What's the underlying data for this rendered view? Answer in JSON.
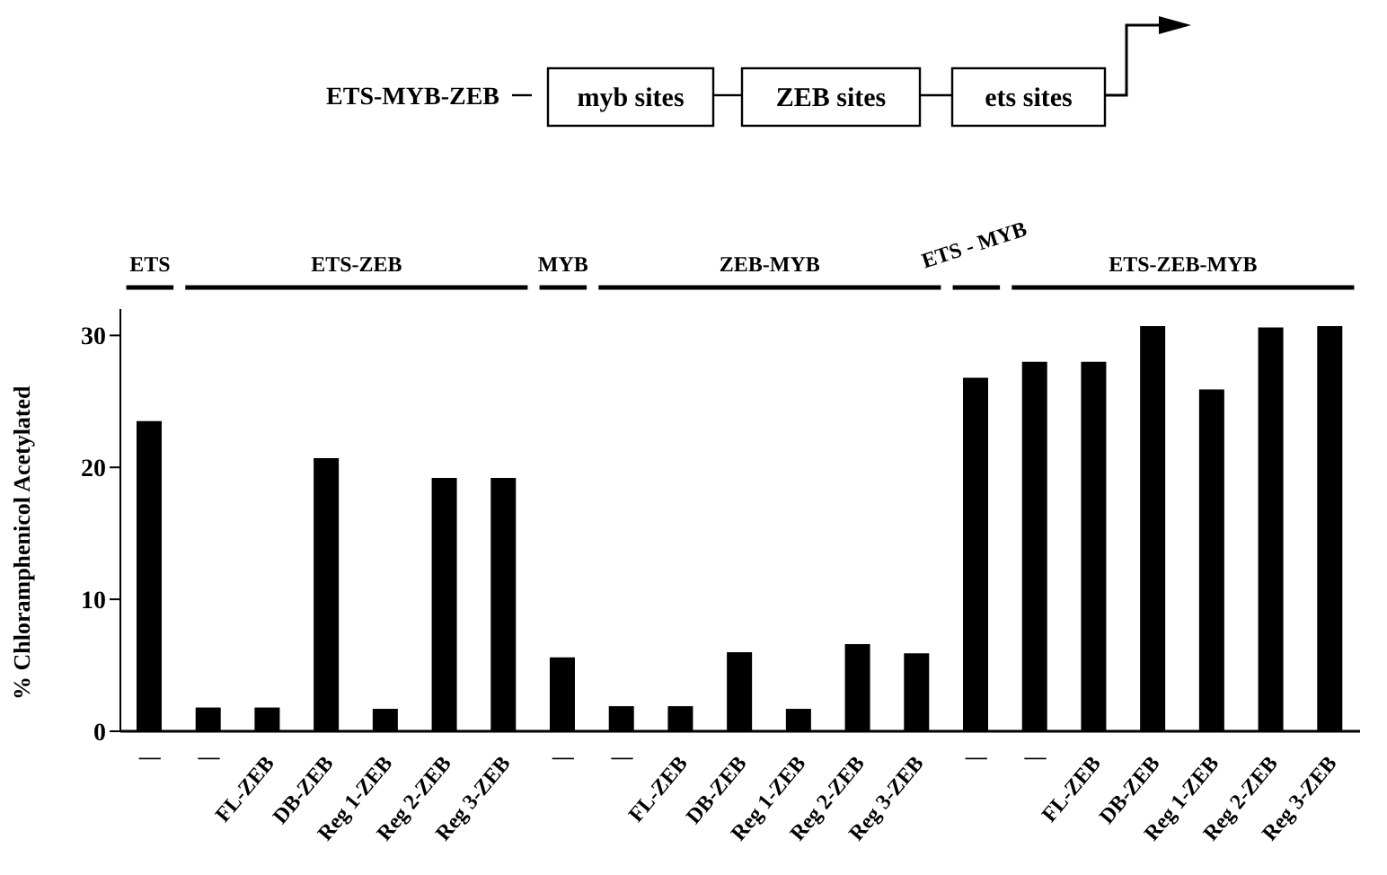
{
  "chart_data": {
    "type": "bar",
    "ylabel": "% Chloramphenicol Acetylated",
    "categories": [
      "—",
      "—",
      "FL-ZEB",
      "DB-ZEB",
      "Reg 1-ZEB",
      "Reg 2-ZEB",
      "Reg 3-ZEB",
      "—",
      "—",
      "FL-ZEB",
      "DB-ZEB",
      "Reg 1-ZEB",
      "Reg 2-ZEB",
      "Reg 3-ZEB",
      "—",
      "—",
      "FL-ZEB",
      "DB-ZEB",
      "Reg 1-ZEB",
      "Reg 2-ZEB",
      "Reg 3-ZEB"
    ],
    "values": [
      23.5,
      1.8,
      1.8,
      20.7,
      1.7,
      19.2,
      19.2,
      5.6,
      1.9,
      1.9,
      6.0,
      1.7,
      6.6,
      5.9,
      26.8,
      28.0,
      28.0,
      30.7,
      25.9,
      30.6,
      30.7
    ],
    "color": "#000000",
    "ylim": [
      0,
      32
    ],
    "yticks": [
      0,
      10,
      20,
      30
    ],
    "grid": false,
    "legend": false,
    "annotations": [
      "ETS",
      "ETS-ZEB",
      "MYB",
      "ZEB-MYB",
      "ETS - MYB",
      "ETS-ZEB-MYB",
      "ETS-MYB-ZEB",
      "myb sites",
      "ZEB sites",
      "ets sites"
    ]
  }
}
